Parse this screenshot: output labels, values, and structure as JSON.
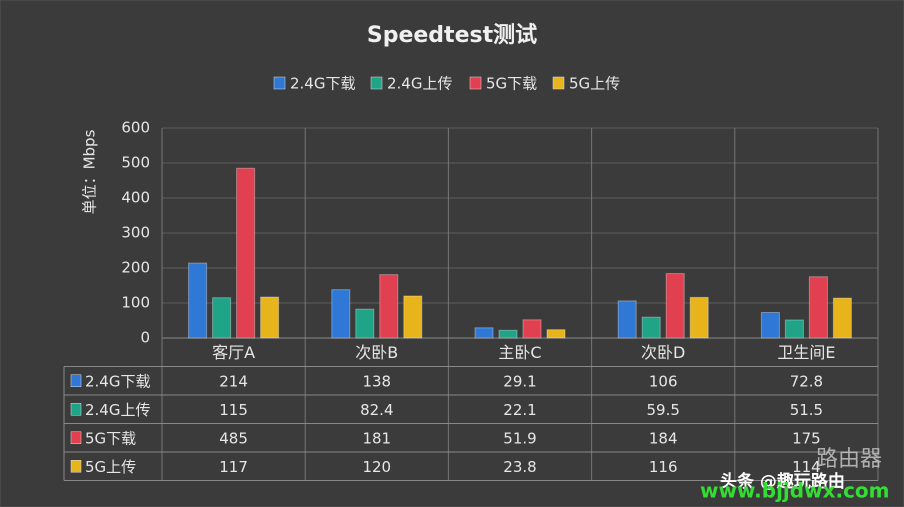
{
  "chart_data": {
    "type": "bar",
    "title": "Speedtest测试",
    "y_label": "单位：Mbps",
    "categories": [
      "客厅A",
      "次卧B",
      "主卧C",
      "次卧D",
      "卫生间E"
    ],
    "series": [
      {
        "name": "2.4G下载",
        "color": "#2f78d6",
        "values": [
          214,
          138,
          29.1,
          106,
          72.8
        ]
      },
      {
        "name": "2.4G上传",
        "color": "#1fa487",
        "values": [
          115,
          82.4,
          22.1,
          59.5,
          51.5
        ]
      },
      {
        "name": "5G下载",
        "color": "#e0404f",
        "values": [
          485,
          181,
          51.9,
          184,
          175
        ]
      },
      {
        "name": "5G上传",
        "color": "#e8b41c",
        "values": [
          117,
          120,
          23.8,
          116,
          114
        ]
      }
    ],
    "ylim": [
      0,
      600
    ],
    "yticks": [
      0,
      100,
      200,
      300,
      400,
      500,
      600
    ],
    "grid": true,
    "legend": "top",
    "data_table": true,
    "watermark": [
      "头条 @趣玩路由",
      "路由器",
      "www.bjjdwx.com"
    ]
  }
}
